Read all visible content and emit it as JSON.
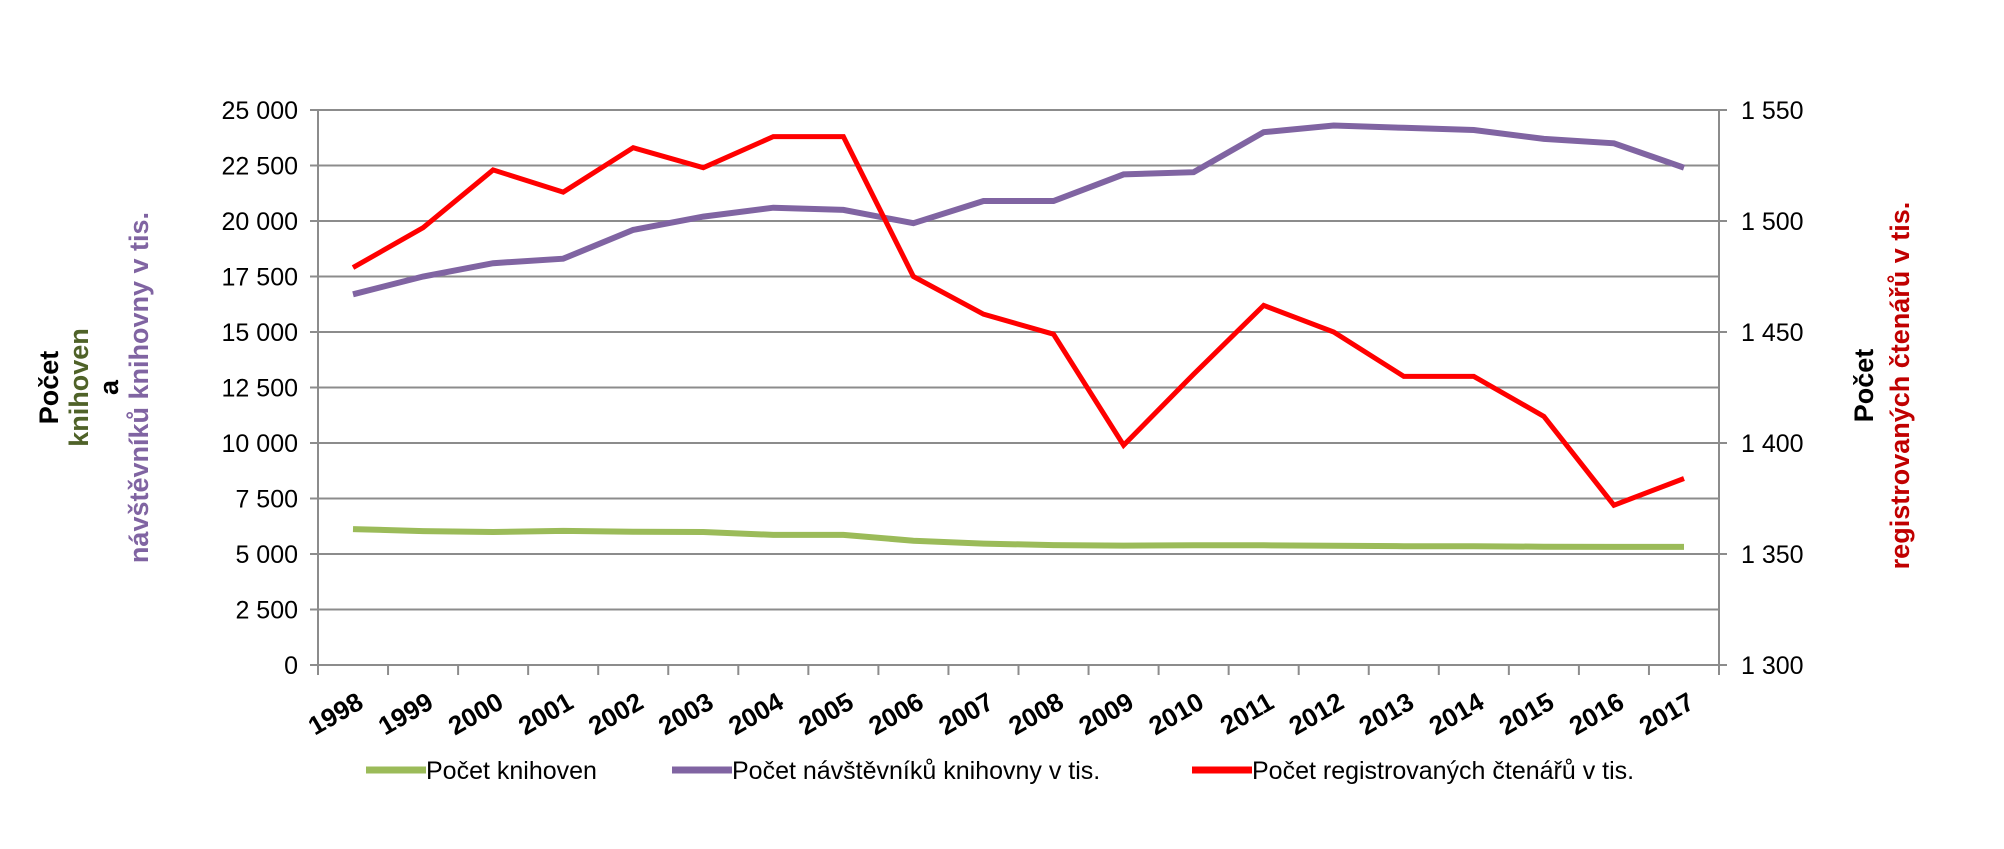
{
  "chart_data": {
    "type": "line",
    "x": [
      "1998",
      "1999",
      "2000",
      "2001",
      "2002",
      "2003",
      "2004",
      "2005",
      "2006",
      "2007",
      "2008",
      "2009",
      "2010",
      "2011",
      "2012",
      "2013",
      "2014",
      "2015",
      "2016",
      "2017"
    ],
    "series": [
      {
        "name": "Počet knihoven",
        "axis": "left",
        "color": "#9bbb59",
        "values": [
          6120,
          6030,
          5990,
          6040,
          6000,
          5990,
          5860,
          5860,
          5600,
          5470,
          5400,
          5380,
          5390,
          5390,
          5370,
          5350,
          5350,
          5330,
          5320,
          5320
        ]
      },
      {
        "name": "Počet návštěvníků knihovny v tis.",
        "axis": "right",
        "color": "#8064a2",
        "values": [
          1467,
          1475,
          1481,
          1483,
          1496,
          1502,
          1506,
          1505,
          1499,
          1509,
          1509,
          1521,
          1522,
          1540,
          1543,
          1542,
          1541,
          1537,
          1535,
          1524
        ]
      },
      {
        "name": "Počet registrovaných čtenářů v tis.",
        "axis": "right",
        "color": "#ff0000",
        "values": [
          1479,
          1497,
          1523,
          1513,
          1533,
          1524,
          1538,
          1538,
          1475,
          1458,
          1449,
          1399,
          1431,
          1462,
          1450,
          1430,
          1430,
          1412,
          1372,
          1384
        ]
      }
    ],
    "y_left": {
      "ylim": [
        0,
        25000
      ],
      "ticks": [
        "0",
        "2 500",
        "5 000",
        "7 500",
        "10 000",
        "12 500",
        "15 000",
        "17 500",
        "20 000",
        "22 500",
        "25 000"
      ],
      "title_lines": [
        {
          "text": "Počet",
          "color": "#000000"
        },
        {
          "text": "knihoven",
          "color": "#4f6228"
        },
        {
          "text": "a",
          "color": "#000000"
        },
        {
          "text": "návštěvníků knihovny v tis.",
          "color": "#8064a2"
        }
      ]
    },
    "y_right": {
      "ylim": [
        1300,
        1550
      ],
      "ticks": [
        "1 300",
        "1 350",
        "1 400",
        "1 450",
        "1 500",
        "1 550"
      ],
      "title_lines": [
        {
          "text": "Počet",
          "color": "#000000"
        },
        {
          "text": "registrovaných čtenářů v tis.",
          "color": "#c00000"
        }
      ]
    },
    "grid": true,
    "legend": "bottom"
  }
}
